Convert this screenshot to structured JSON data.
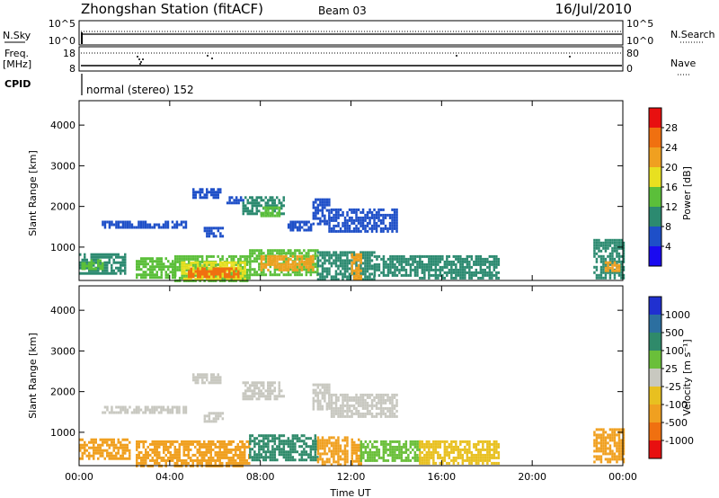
{
  "header": {
    "station": "Zhongshan Station (fitACF)",
    "beam": "Beam 03",
    "date": "16/Jul/2010"
  },
  "panels": {
    "nsky_label": "N.Sky",
    "nsky_ticks": [
      "10^5",
      "10^0"
    ],
    "nsearch_label": "N.Search",
    "nsearch_ticks": [
      "10^5",
      "10^0"
    ],
    "freq_label_1": "Freq.",
    "freq_label_2": "[MHz]",
    "freq_ticks": [
      "18",
      "8"
    ],
    "nave_label": "Nave",
    "nave_ticks": [
      "80",
      "0"
    ],
    "cpid_label": "CPID",
    "cpid_value": "normal (stereo) 152"
  },
  "colorbars": {
    "power": {
      "label": "Power [dB]",
      "ticks": [
        "28",
        "24",
        "20",
        "16",
        "12",
        "8",
        "4"
      ],
      "colors": [
        "#1a0af0",
        "#1e4fc8",
        "#2c8a70",
        "#5bbf3a",
        "#e8e020",
        "#f0a020",
        "#f07010",
        "#e81010"
      ]
    },
    "velocity": {
      "label": "Velocity [m s⁻¹]",
      "ticks": [
        "1000",
        "500",
        "100",
        "25",
        "-25",
        "-100",
        "-500",
        "-1000"
      ],
      "colors": [
        "#2030d0",
        "#2c6fa0",
        "#2f8a6a",
        "#6abf3a",
        "#c8c8c0",
        "#e8c020",
        "#f0a020",
        "#f07010",
        "#e81010"
      ]
    }
  },
  "chart_data": [
    {
      "type": "heatmap",
      "title": "",
      "ylabel": "Slant Range [km]",
      "xlabel": "",
      "x_ticks": [
        "00:00",
        "04:00",
        "08:00",
        "12:00",
        "16:00",
        "20:00",
        "00:00"
      ],
      "xlim_hours": [
        0,
        24
      ],
      "y_ticks": [
        1000,
        2000,
        3000,
        4000
      ],
      "ylim": [
        180,
        4600
      ],
      "quantity": "power_dB",
      "regions": [
        {
          "t0": 0.0,
          "t1": 2.0,
          "r0": 350,
          "r1": 850,
          "value": 8
        },
        {
          "t0": 0.1,
          "t1": 1.0,
          "r0": 450,
          "r1": 700,
          "value": 12
        },
        {
          "t0": 2.5,
          "t1": 4.2,
          "r0": 250,
          "r1": 750,
          "value": 12
        },
        {
          "t0": 4.2,
          "t1": 7.5,
          "r0": 200,
          "r1": 800,
          "value": 12
        },
        {
          "t0": 4.5,
          "t1": 7.3,
          "r0": 250,
          "r1": 650,
          "value": 18
        },
        {
          "t0": 4.8,
          "t1": 7.0,
          "r0": 250,
          "r1": 500,
          "value": 26
        },
        {
          "t0": 7.5,
          "t1": 10.5,
          "r0": 300,
          "r1": 950,
          "value": 12
        },
        {
          "t0": 8.0,
          "t1": 10.3,
          "r0": 450,
          "r1": 800,
          "value": 22
        },
        {
          "t0": 10.5,
          "t1": 13.0,
          "r0": 200,
          "r1": 900,
          "value": 10
        },
        {
          "t0": 12.0,
          "t1": 12.4,
          "r0": 200,
          "r1": 850,
          "value": 22
        },
        {
          "t0": 13.0,
          "t1": 15.0,
          "r0": 300,
          "r1": 800,
          "value": 8
        },
        {
          "t0": 15.0,
          "t1": 18.5,
          "r0": 250,
          "r1": 800,
          "value": 8
        },
        {
          "t0": 22.7,
          "t1": 24.0,
          "r0": 250,
          "r1": 1200,
          "value": 8
        },
        {
          "t0": 23.2,
          "t1": 23.8,
          "r0": 400,
          "r1": 650,
          "value": 22
        },
        {
          "t0": 1.0,
          "t1": 4.7,
          "r0": 1480,
          "r1": 1650,
          "value": 6
        },
        {
          "t0": 5.0,
          "t1": 6.2,
          "r0": 2200,
          "r1": 2450,
          "value": 6
        },
        {
          "t0": 5.5,
          "t1": 6.3,
          "r0": 1300,
          "r1": 1500,
          "value": 6
        },
        {
          "t0": 6.5,
          "t1": 7.2,
          "r0": 2100,
          "r1": 2250,
          "value": 6
        },
        {
          "t0": 7.2,
          "t1": 9.0,
          "r0": 1850,
          "r1": 2250,
          "value": 8
        },
        {
          "t0": 8.0,
          "t1": 8.8,
          "r0": 1800,
          "r1": 2000,
          "value": 12
        },
        {
          "t0": 9.2,
          "t1": 10.2,
          "r0": 1450,
          "r1": 1650,
          "value": 6
        },
        {
          "t0": 10.3,
          "t1": 11.0,
          "r0": 1600,
          "r1": 2200,
          "value": 6
        },
        {
          "t0": 11.0,
          "t1": 14.0,
          "r0": 1400,
          "r1": 1950,
          "value": 6
        }
      ]
    },
    {
      "type": "heatmap",
      "title": "",
      "ylabel": "Slant Range [km]",
      "xlabel": "Time UT",
      "x_ticks": [
        "00:00",
        "04:00",
        "08:00",
        "12:00",
        "16:00",
        "20:00",
        "00:00"
      ],
      "xlim_hours": [
        0,
        24
      ],
      "y_ticks": [
        1000,
        2000,
        3000,
        4000
      ],
      "ylim": [
        180,
        4600
      ],
      "quantity": "velocity_m_s",
      "regions": [
        {
          "t0": 0.0,
          "t1": 2.2,
          "r0": 350,
          "r1": 850,
          "value": -150
        },
        {
          "t0": 2.5,
          "t1": 7.5,
          "r0": 200,
          "r1": 800,
          "value": -200
        },
        {
          "t0": 7.5,
          "t1": 10.5,
          "r0": 300,
          "r1": 950,
          "value": 150
        },
        {
          "t0": 10.5,
          "t1": 11.8,
          "r0": 200,
          "r1": 900,
          "value": -150
        },
        {
          "t0": 12.0,
          "t1": 12.4,
          "r0": 200,
          "r1": 850,
          "value": -300
        },
        {
          "t0": 12.4,
          "t1": 15.0,
          "r0": 300,
          "r1": 800,
          "value": 50
        },
        {
          "t0": 15.0,
          "t1": 18.5,
          "r0": 250,
          "r1": 800,
          "value": -80
        },
        {
          "t0": 22.7,
          "t1": 24.0,
          "r0": 250,
          "r1": 1100,
          "value": -150
        },
        {
          "t0": 1.0,
          "t1": 4.7,
          "r0": 1480,
          "r1": 1650,
          "value": 0
        },
        {
          "t0": 5.0,
          "t1": 6.2,
          "r0": 2200,
          "r1": 2450,
          "value": 0
        },
        {
          "t0": 5.5,
          "t1": 6.3,
          "r0": 1300,
          "r1": 1500,
          "value": 0
        },
        {
          "t0": 7.2,
          "t1": 9.0,
          "r0": 1850,
          "r1": 2250,
          "value": 10
        },
        {
          "t0": 10.3,
          "t1": 11.0,
          "r0": 1600,
          "r1": 2200,
          "value": 0
        },
        {
          "t0": 11.0,
          "t1": 14.0,
          "r0": 1400,
          "r1": 1950,
          "value": 0
        }
      ]
    }
  ]
}
